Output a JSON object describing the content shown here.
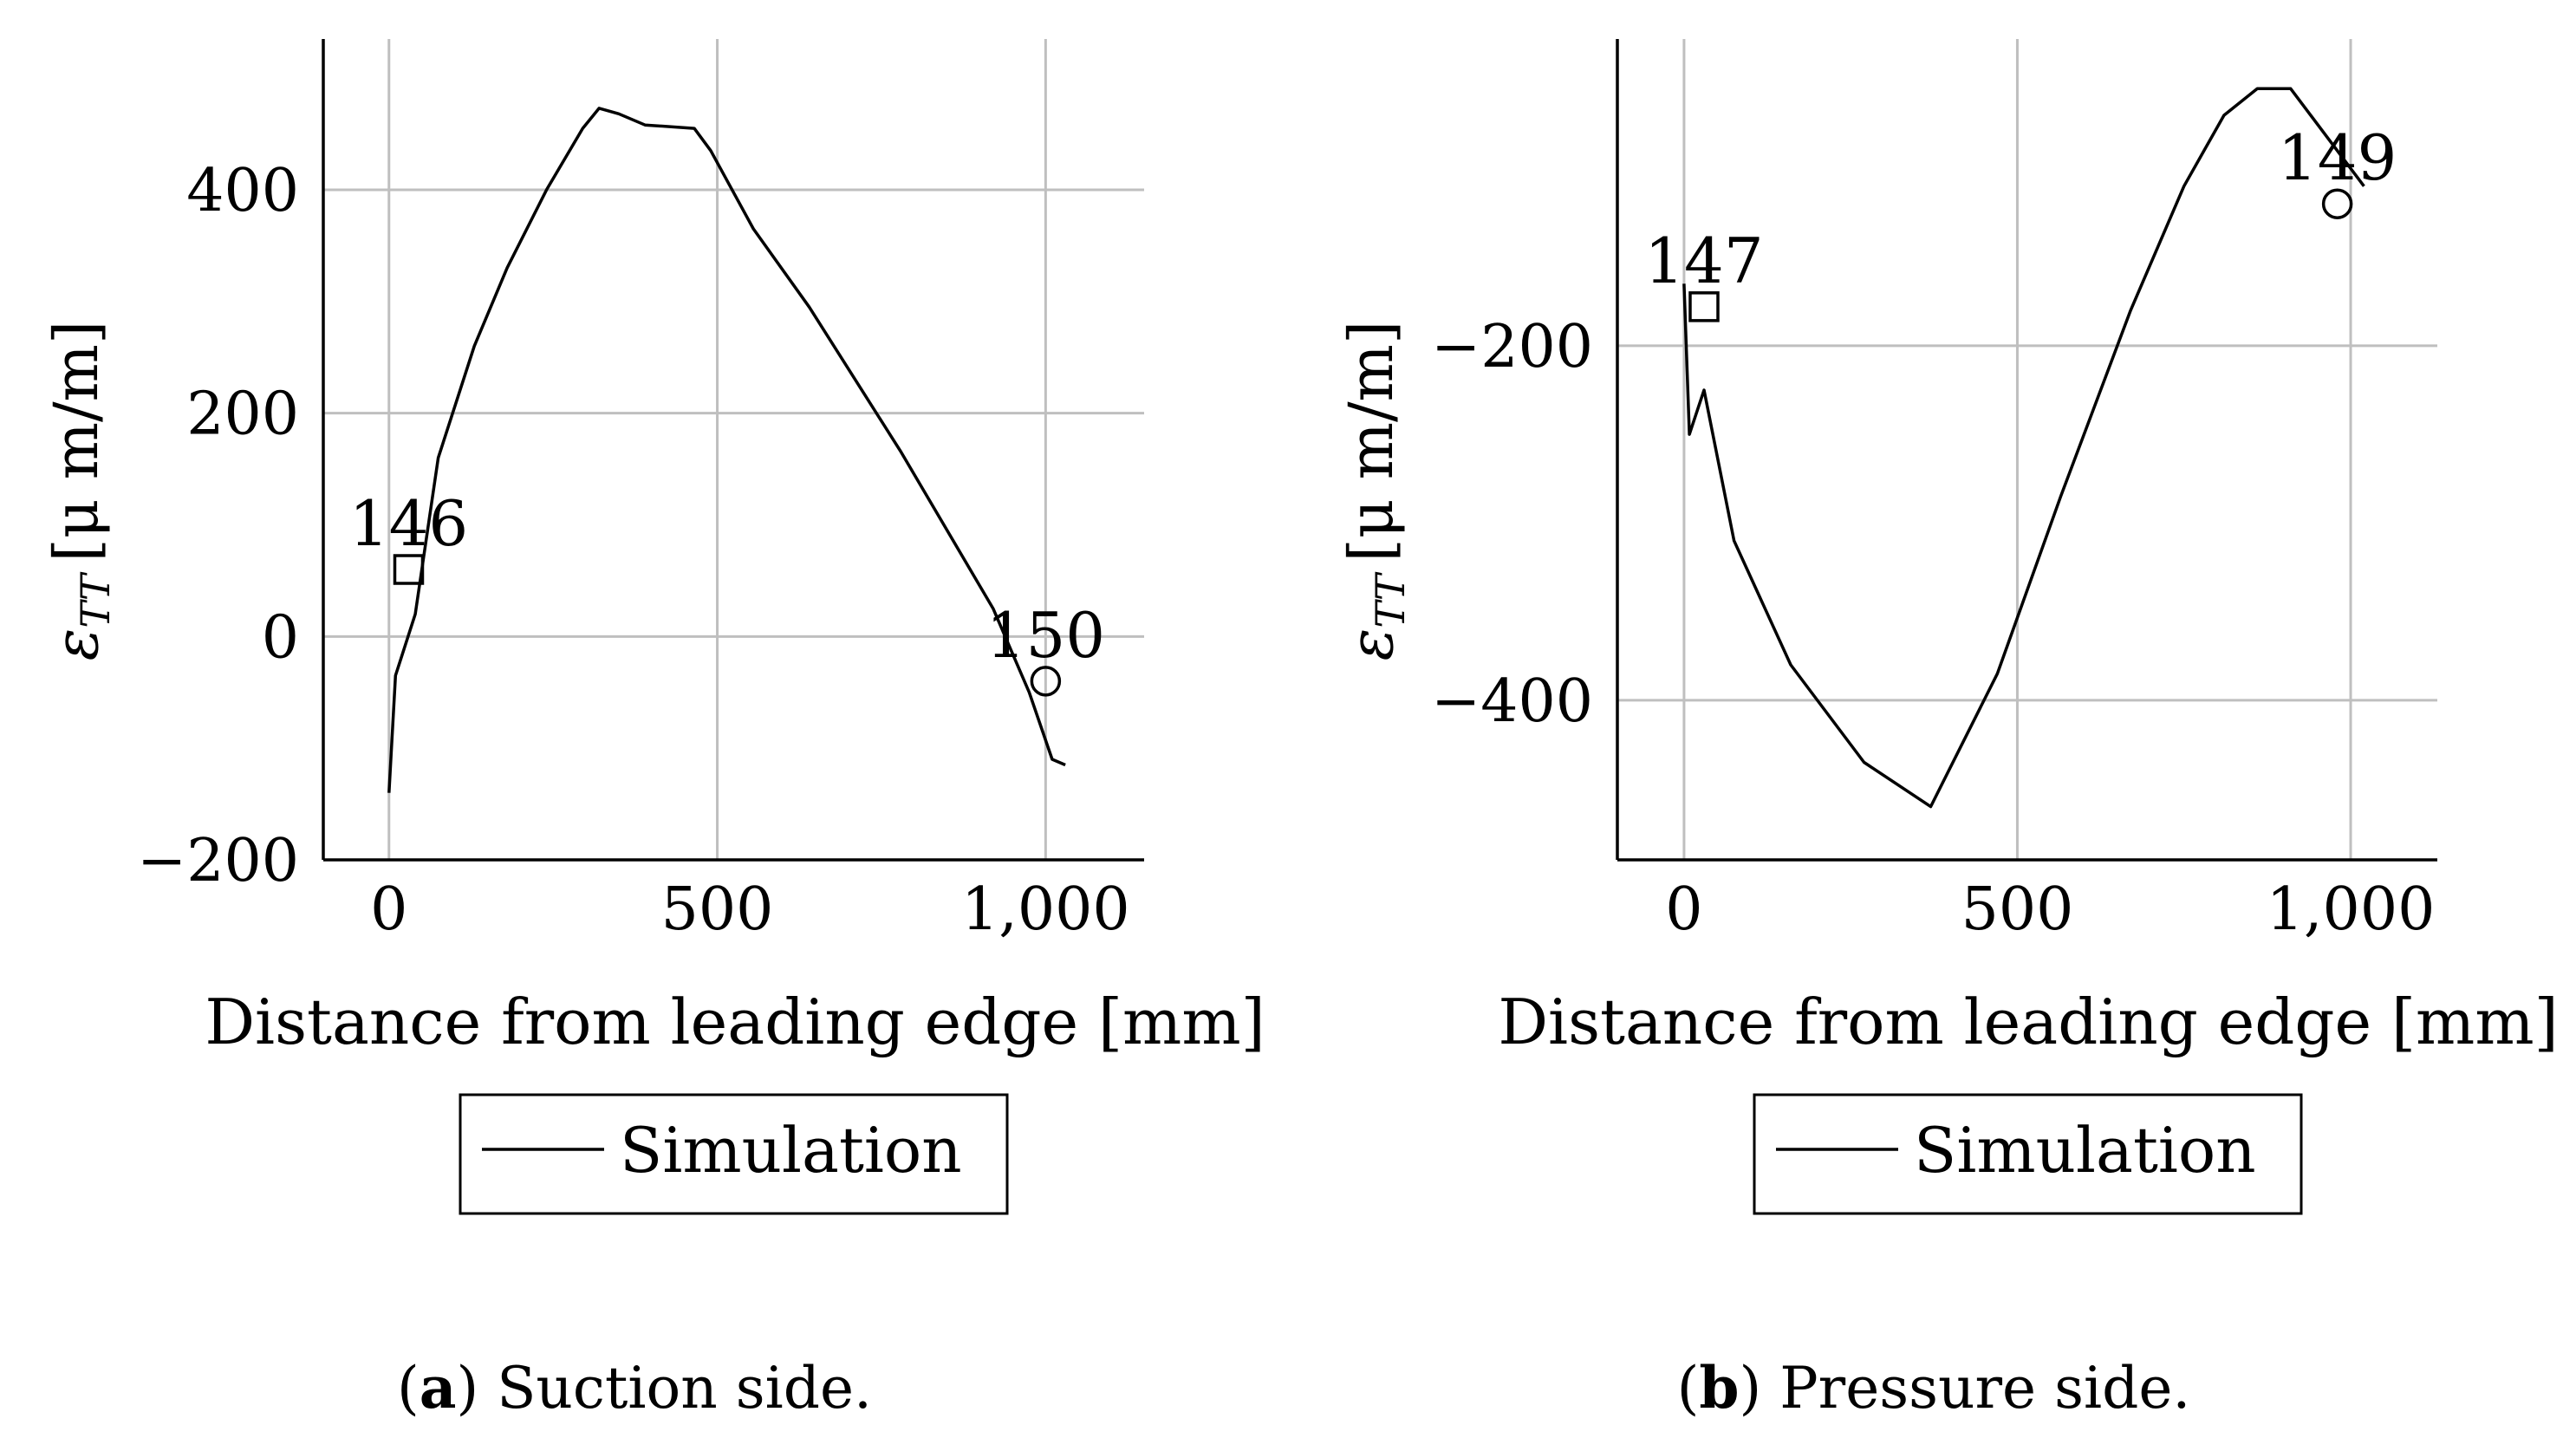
{
  "chart_data": [
    {
      "type": "line",
      "title": "",
      "xlabel": "Distance from leading edge [mm]",
      "ylabel_symbol": "ε",
      "ylabel_subscript": "TT",
      "ylabel_unit": "[μ m/m]",
      "xlim": [
        -100,
        1150
      ],
      "ylim": [
        -200,
        535
      ],
      "xticks": [
        0,
        500,
        1000
      ],
      "xtick_labels": [
        "0",
        "500",
        "1,000"
      ],
      "yticks": [
        -200,
        0,
        200,
        400
      ],
      "ytick_labels": [
        "−200",
        "0",
        "200",
        "400"
      ],
      "grid": true,
      "series": [
        {
          "name": "Simulation",
          "x": [
            0,
            10,
            40,
            75,
            130,
            180,
            240,
            295,
            320,
            350,
            390,
            465,
            490,
            555,
            640,
            780,
            920,
            975,
            1010,
            1030
          ],
          "y": [
            -140,
            -35,
            20,
            160,
            260,
            330,
            400,
            455,
            473,
            468,
            458,
            455,
            435,
            365,
            295,
            165,
            25,
            -50,
            -110,
            -115
          ]
        }
      ],
      "markers": [
        {
          "label": "146",
          "shape": "square",
          "x": 30,
          "y": 60
        },
        {
          "label": "150",
          "shape": "circle",
          "x": 1000,
          "y": -40
        }
      ],
      "legend": {
        "entries": [
          "Simulation"
        ],
        "position": "below"
      },
      "caption_letter": "a",
      "caption_text": " Suction side."
    },
    {
      "type": "line",
      "title": "",
      "xlabel": "Distance from leading edge [mm]",
      "ylabel_symbol": "ε",
      "ylabel_subscript": "TT",
      "ylabel_unit": "[μ m/m]",
      "xlim": [
        -100,
        1130
      ],
      "ylim": [
        -490,
        -27
      ],
      "xticks": [
        0,
        500,
        1000
      ],
      "xtick_labels": [
        "0",
        "500",
        "1,000"
      ],
      "yticks": [
        -400,
        -200
      ],
      "ytick_labels": [
        "−400",
        "−200"
      ],
      "grid": true,
      "series": [
        {
          "name": "Simulation",
          "x": [
            0,
            8,
            30,
            75,
            160,
            270,
            370,
            470,
            565,
            670,
            750,
            810,
            860,
            910,
            1000,
            1020
          ],
          "y": [
            -165,
            -250,
            -225,
            -310,
            -380,
            -435,
            -460,
            -385,
            -285,
            -180,
            -110,
            -70,
            -55,
            -55,
            -100,
            -110
          ]
        }
      ],
      "markers": [
        {
          "label": "147",
          "shape": "square",
          "x": 30,
          "y": -178
        },
        {
          "label": "149",
          "shape": "circle",
          "x": 980,
          "y": -120
        }
      ],
      "legend": {
        "entries": [
          "Simulation"
        ],
        "position": "below"
      },
      "caption_letter": "b",
      "caption_text": " Pressure side."
    }
  ],
  "colors": {
    "axis": "#000000",
    "grid": "#bfbfbf",
    "line": "#000000"
  }
}
